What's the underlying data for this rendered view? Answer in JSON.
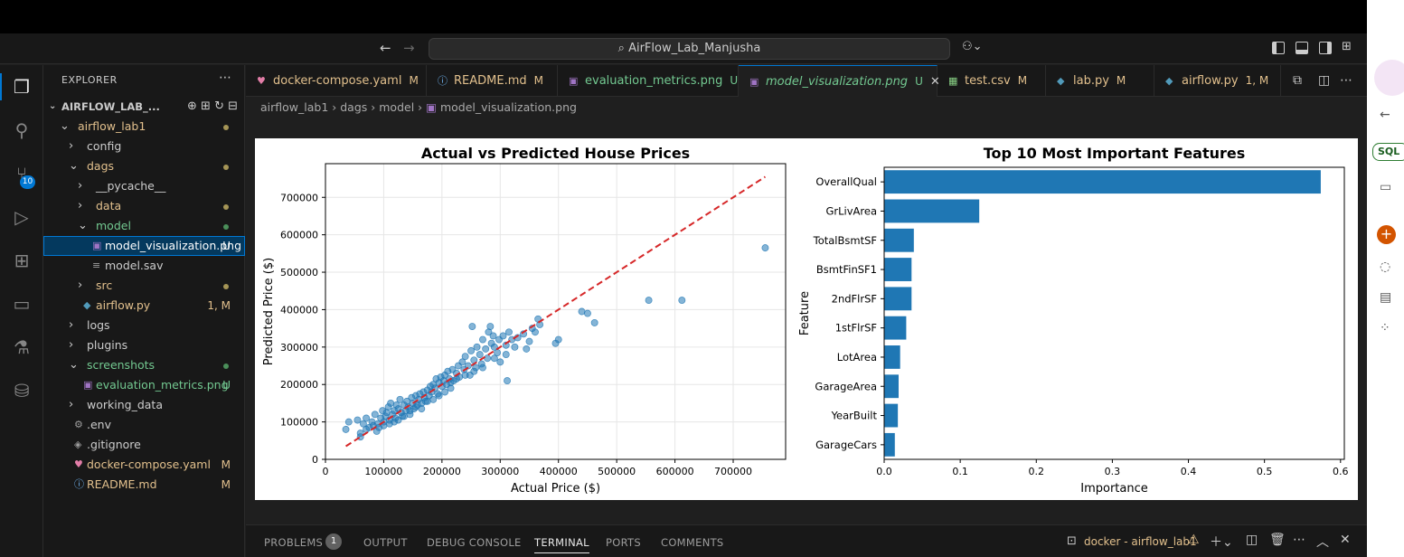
{
  "window": {
    "title": "AirFlow_Lab_Manjusha"
  },
  "icons": {
    "back": "arrow-left-icon",
    "forward": "arrow-right-icon",
    "search": "search-icon",
    "copilot": "copilot-icon",
    "layout": "layout-icon"
  },
  "activity_bar": {
    "scm_badge": "10"
  },
  "explorer": {
    "title": "EXPLORER",
    "root": "AIRFLOW_LAB_...",
    "tree": [
      {
        "label": "airflow_lab1",
        "indent": 1,
        "type": "folder-open",
        "color": "yellow",
        "status": "dot-y"
      },
      {
        "label": "config",
        "indent": 2,
        "type": "folder",
        "color": "white",
        "status": ""
      },
      {
        "label": "dags",
        "indent": 2,
        "type": "folder-open",
        "color": "yellow",
        "status": "dot-y"
      },
      {
        "label": "__pycache__",
        "indent": 3,
        "type": "folder",
        "color": "white",
        "status": ""
      },
      {
        "label": "data",
        "indent": 3,
        "type": "folder",
        "color": "yellow",
        "status": "dot-y"
      },
      {
        "label": "model",
        "indent": 3,
        "type": "folder-open",
        "color": "green",
        "status": "dot-g"
      },
      {
        "label": "model_visualization.png",
        "indent": 4,
        "type": "image",
        "color": "white",
        "status": "U",
        "selected": true
      },
      {
        "label": "model.sav",
        "indent": 4,
        "type": "file",
        "color": "white",
        "status": ""
      },
      {
        "label": "src",
        "indent": 3,
        "type": "folder",
        "color": "yellow",
        "status": "dot-y"
      },
      {
        "label": "airflow.py",
        "indent": 3,
        "type": "python",
        "color": "yellow",
        "status": "1, M"
      },
      {
        "label": "logs",
        "indent": 2,
        "type": "folder",
        "color": "white",
        "status": ""
      },
      {
        "label": "plugins",
        "indent": 2,
        "type": "folder",
        "color": "white",
        "status": ""
      },
      {
        "label": "screenshots",
        "indent": 2,
        "type": "folder-open",
        "color": "green",
        "status": "dot-g"
      },
      {
        "label": "evaluation_metrics.png",
        "indent": 3,
        "type": "image",
        "color": "green",
        "status": "U"
      },
      {
        "label": "working_data",
        "indent": 2,
        "type": "folder",
        "color": "white",
        "status": ""
      },
      {
        "label": ".env",
        "indent": 2,
        "type": "gear",
        "color": "white",
        "status": ""
      },
      {
        "label": ".gitignore",
        "indent": 2,
        "type": "git",
        "color": "white",
        "status": ""
      },
      {
        "label": "docker-compose.yaml",
        "indent": 2,
        "type": "docker",
        "color": "yellow",
        "status": "M"
      },
      {
        "label": "README.md",
        "indent": 2,
        "type": "info",
        "color": "yellow",
        "status": "M"
      }
    ]
  },
  "tabs": [
    {
      "label": "docker-compose.yaml",
      "status": "M",
      "icon": "♥",
      "icon_color": "#e37ea8",
      "color": "#e2c08d"
    },
    {
      "label": "README.md",
      "status": "M",
      "icon": "ⓘ",
      "icon_color": "#75beff",
      "color": "#e2c08d"
    },
    {
      "label": "evaluation_metrics.png",
      "status": "U",
      "icon": "▣",
      "icon_color": "#a074c4",
      "color": "#73c991"
    },
    {
      "label": "model_visualization.png",
      "status": "U",
      "icon": "▣",
      "icon_color": "#a074c4",
      "color": "#73c991",
      "active": true
    },
    {
      "label": "test.csv",
      "status": "M",
      "icon": "▦",
      "icon_color": "#89d185",
      "color": "#e2c08d"
    },
    {
      "label": "lab.py",
      "status": "M",
      "icon": "◆",
      "icon_color": "#519aba",
      "color": "#e2c08d"
    },
    {
      "label": "airflow.py",
      "status": "1, M",
      "icon": "◆",
      "icon_color": "#519aba",
      "color": "#e2c08d"
    }
  ],
  "breadcrumb": [
    "airflow_lab1",
    "dags",
    "model",
    "model_visualization.png"
  ],
  "chart_data": [
    {
      "type": "scatter",
      "title": "Actual vs Predicted House Prices",
      "xlabel": "Actual Price ($)",
      "ylabel": "Predicted Price ($)",
      "xlim": [
        0,
        790000
      ],
      "ylim": [
        0,
        790000
      ],
      "xticks": [
        0,
        100000,
        200000,
        300000,
        400000,
        500000,
        600000,
        700000
      ],
      "yticks": [
        0,
        100000,
        200000,
        300000,
        400000,
        500000,
        600000,
        700000
      ],
      "grid": true,
      "point_color": "#1f77b4",
      "line_color": "#d62728",
      "reference_line": {
        "x": [
          35000,
          755000
        ],
        "y": [
          35000,
          755000
        ],
        "style": "dashed"
      },
      "points": [
        [
          35000,
          80000
        ],
        [
          40000,
          100000
        ],
        [
          55000,
          105000
        ],
        [
          60000,
          70000
        ],
        [
          65000,
          95000
        ],
        [
          70000,
          110000
        ],
        [
          75000,
          85000
        ],
        [
          80000,
          100000
        ],
        [
          85000,
          120000
        ],
        [
          88000,
          75000
        ],
        [
          90000,
          95000
        ],
        [
          95000,
          110000
        ],
        [
          98000,
          130000
        ],
        [
          100000,
          100000
        ],
        [
          103000,
          115000
        ],
        [
          105000,
          125000
        ],
        [
          108000,
          140000
        ],
        [
          110000,
          105000
        ],
        [
          112000,
          150000
        ],
        [
          115000,
          120000
        ],
        [
          118000,
          130000
        ],
        [
          120000,
          110000
        ],
        [
          122000,
          145000
        ],
        [
          125000,
          135000
        ],
        [
          128000,
          160000
        ],
        [
          130000,
          125000
        ],
        [
          132000,
          115000
        ],
        [
          135000,
          145000
        ],
        [
          138000,
          130000
        ],
        [
          140000,
          155000
        ],
        [
          142000,
          140000
        ],
        [
          145000,
          120000
        ],
        [
          148000,
          165000
        ],
        [
          150000,
          150000
        ],
        [
          152000,
          135000
        ],
        [
          155000,
          170000
        ],
        [
          158000,
          145000
        ],
        [
          160000,
          160000
        ],
        [
          162000,
          175000
        ],
        [
          165000,
          150000
        ],
        [
          168000,
          180000
        ],
        [
          170000,
          165000
        ],
        [
          172000,
          155000
        ],
        [
          175000,
          185000
        ],
        [
          178000,
          170000
        ],
        [
          180000,
          195000
        ],
        [
          182000,
          180000
        ],
        [
          185000,
          200000
        ],
        [
          188000,
          190000
        ],
        [
          190000,
          215000
        ],
        [
          193000,
          175000
        ],
        [
          195000,
          205000
        ],
        [
          198000,
          220000
        ],
        [
          200000,
          195000
        ],
        [
          203000,
          210000
        ],
        [
          205000,
          225000
        ],
        [
          208000,
          200000
        ],
        [
          210000,
          235000
        ],
        [
          213000,
          215000
        ],
        [
          215000,
          190000
        ],
        [
          218000,
          240000
        ],
        [
          220000,
          210000
        ],
        [
          225000,
          230000
        ],
        [
          228000,
          250000
        ],
        [
          230000,
          220000
        ],
        [
          235000,
          260000
        ],
        [
          238000,
          240000
        ],
        [
          240000,
          275000
        ],
        [
          245000,
          250000
        ],
        [
          248000,
          225000
        ],
        [
          250000,
          290000
        ],
        [
          252000,
          355000
        ],
        [
          255000,
          265000
        ],
        [
          258000,
          245000
        ],
        [
          260000,
          300000
        ],
        [
          265000,
          280000
        ],
        [
          268000,
          255000
        ],
        [
          270000,
          320000
        ],
        [
          275000,
          295000
        ],
        [
          278000,
          270000
        ],
        [
          280000,
          340000
        ],
        [
          283000,
          355000
        ],
        [
          285000,
          310000
        ],
        [
          288000,
          330000
        ],
        [
          290000,
          300000
        ],
        [
          295000,
          285000
        ],
        [
          298000,
          320000
        ],
        [
          300000,
          260000
        ],
        [
          305000,
          330000
        ],
        [
          310000,
          305000
        ],
        [
          312000,
          210000
        ],
        [
          315000,
          340000
        ],
        [
          320000,
          320000
        ],
        [
          325000,
          300000
        ],
        [
          330000,
          325000
        ],
        [
          340000,
          335000
        ],
        [
          345000,
          295000
        ],
        [
          350000,
          315000
        ],
        [
          355000,
          350000
        ],
        [
          360000,
          340000
        ],
        [
          365000,
          375000
        ],
        [
          368000,
          360000
        ],
        [
          395000,
          310000
        ],
        [
          400000,
          320000
        ],
        [
          440000,
          395000
        ],
        [
          450000,
          390000
        ],
        [
          462000,
          365000
        ],
        [
          555000,
          425000
        ],
        [
          612000,
          425000
        ],
        [
          755000,
          565000
        ],
        [
          60000,
          60000
        ],
        [
          70000,
          80000
        ],
        [
          82000,
          90000
        ],
        [
          92000,
          85000
        ],
        [
          100000,
          90000
        ],
        [
          110000,
          95000
        ],
        [
          118000,
          100000
        ],
        [
          125000,
          105000
        ],
        [
          135000,
          115000
        ],
        [
          145000,
          130000
        ],
        [
          155000,
          140000
        ],
        [
          165000,
          135000
        ],
        [
          175000,
          155000
        ],
        [
          185000,
          160000
        ],
        [
          195000,
          170000
        ],
        [
          205000,
          180000
        ],
        [
          215000,
          205000
        ],
        [
          225000,
          215000
        ],
        [
          240000,
          225000
        ],
        [
          255000,
          235000
        ],
        [
          270000,
          245000
        ],
        [
          290000,
          270000
        ],
        [
          310000,
          280000
        ]
      ]
    },
    {
      "type": "bar",
      "orientation": "horizontal",
      "title": "Top 10 Most Important Features",
      "xlabel": "Importance",
      "ylabel": "Feature",
      "xlim": [
        0,
        0.605
      ],
      "xticks": [
        0.0,
        0.1,
        0.2,
        0.3,
        0.4,
        0.5,
        0.6
      ],
      "xtick_labels": [
        "0.0",
        "0.1",
        "0.2",
        "0.3",
        "0.4",
        "0.5",
        "0.6"
      ],
      "bar_color": "#1f77b4",
      "categories": [
        "OverallQual",
        "GrLivArea",
        "TotalBsmtSF",
        "BsmtFinSF1",
        "2ndFlrSF",
        "1stFlrSF",
        "LotArea",
        "GarageArea",
        "YearBuilt",
        "GarageCars"
      ],
      "values": [
        0.574,
        0.125,
        0.039,
        0.036,
        0.036,
        0.029,
        0.021,
        0.019,
        0.018,
        0.014
      ]
    }
  ],
  "panel": {
    "tabs": [
      "PROBLEMS",
      "OUTPUT",
      "DEBUG CONSOLE",
      "TERMINAL",
      "PORTS",
      "COMMENTS"
    ],
    "active": "TERMINAL",
    "problems_count": "1",
    "terminal_name": "docker - airflow_lab1"
  },
  "right_rail": {
    "sql_label": "SQL"
  }
}
